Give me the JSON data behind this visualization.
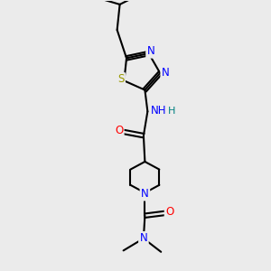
{
  "bg_color": "#ebebeb",
  "atom_colors": {
    "C": "#000000",
    "N": "#0000ff",
    "O": "#ff0000",
    "S": "#999900",
    "H": "#008080"
  },
  "bond_color": "#000000",
  "bond_width": 1.5,
  "figsize": [
    3.0,
    3.0
  ],
  "dpi": 100,
  "xlim": [
    0,
    10
  ],
  "ylim": [
    0,
    10
  ]
}
